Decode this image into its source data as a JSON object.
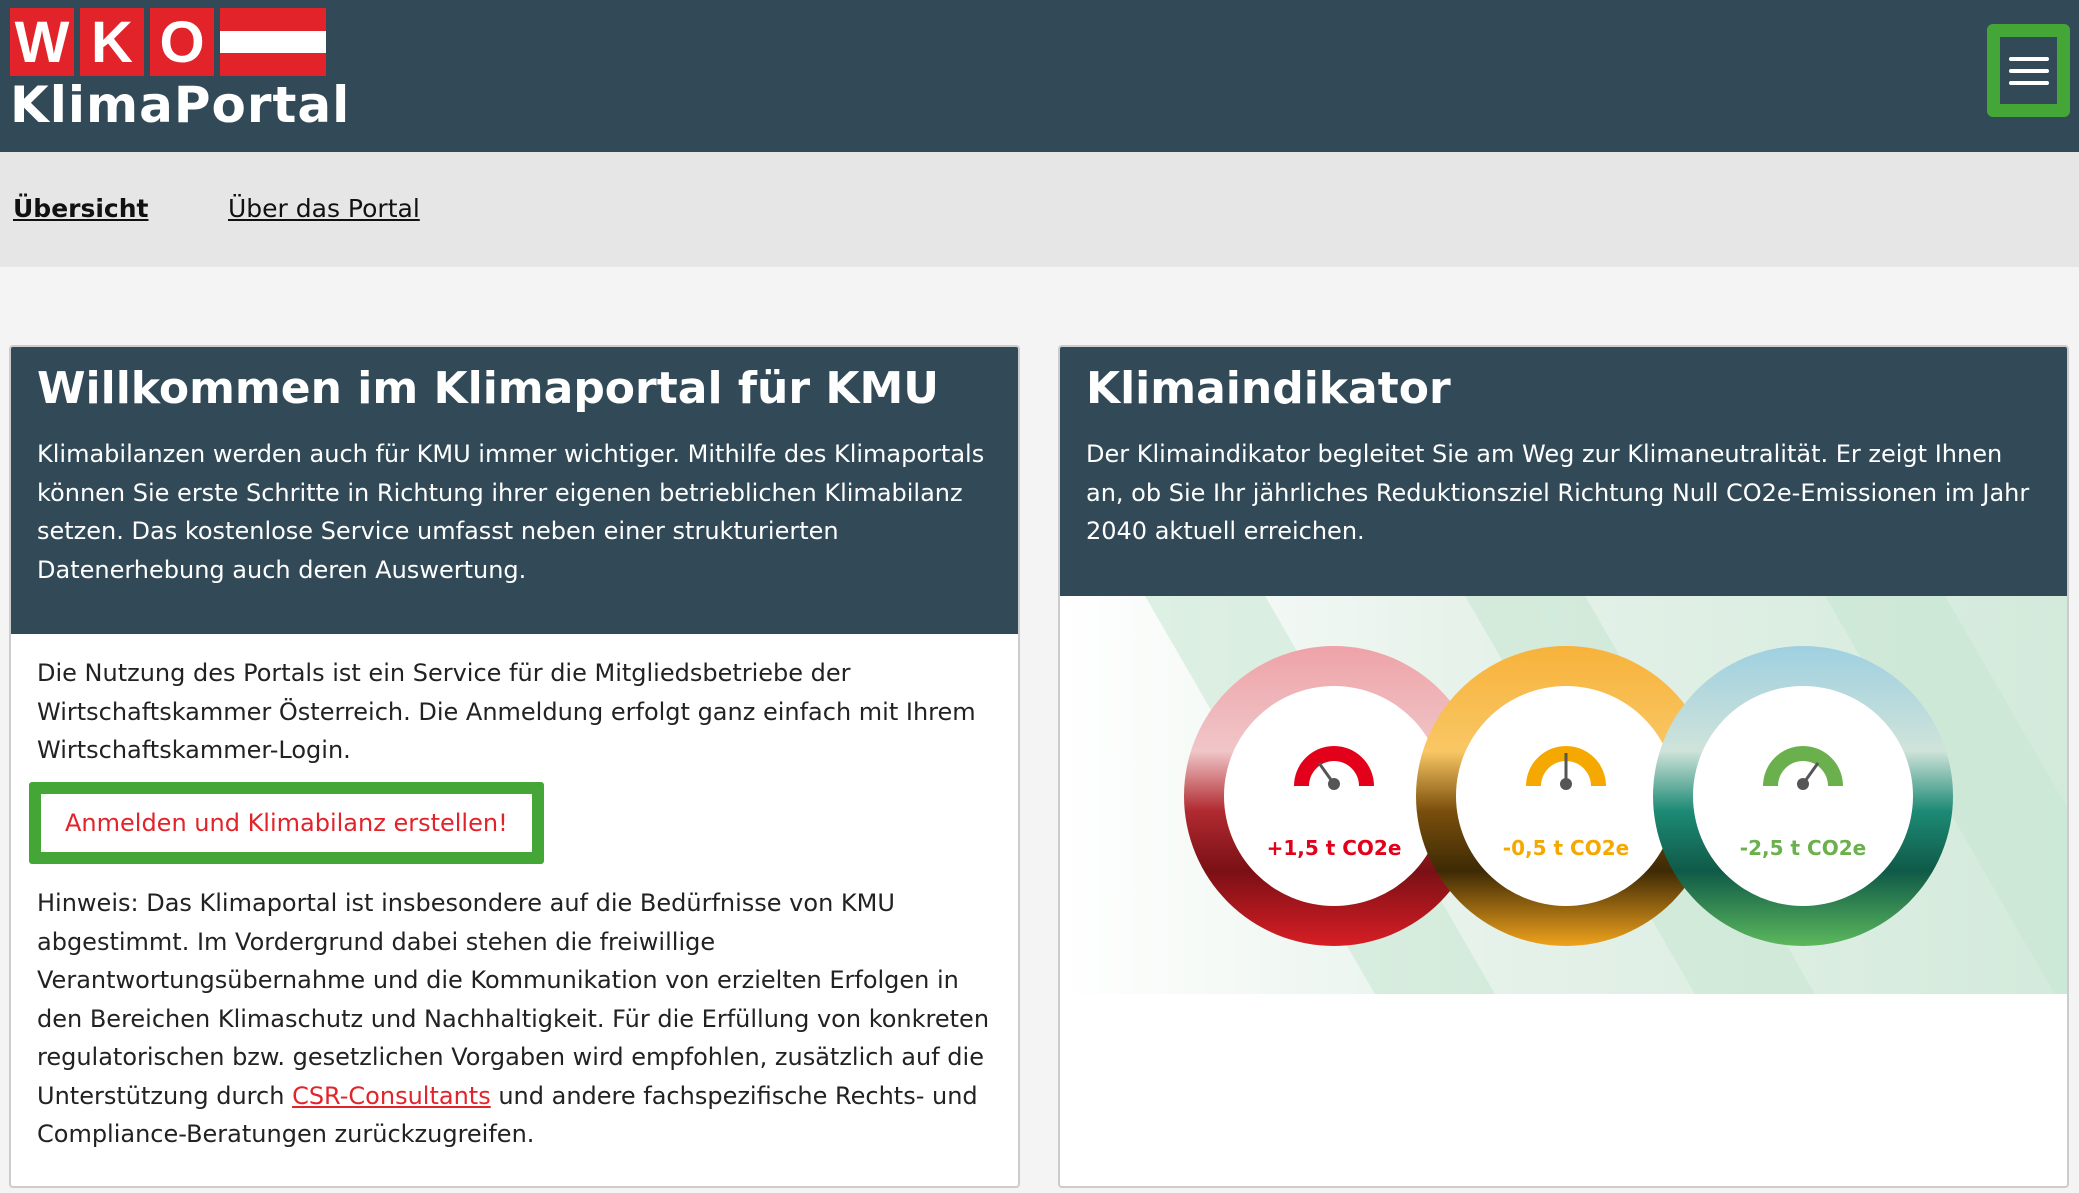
{
  "header": {
    "logo_letters": [
      "W",
      "K",
      "O"
    ],
    "logo_text": "KlimaPortal",
    "menu_icon": "hamburger-icon"
  },
  "nav": {
    "items": [
      {
        "label": "Übersicht",
        "active": true
      },
      {
        "label": "Über das Portal",
        "active": false
      }
    ]
  },
  "welcome": {
    "title": "Willkommen im Klimaportal für KMU",
    "intro": "Klimabilanzen werden auch für KMU immer wichtiger. Mithilfe des Klimaportals können Sie erste Schritte in Richtung ihrer eigenen betrieblichen Klimabilanz setzen. Das kostenlose Service umfasst neben einer strukturierten Datenerhebung auch deren Auswertung.",
    "usage": "Die Nutzung des Portals ist ein Service für die Mitgliedsbetriebe der Wirtschaftskammer Österreich. Die Anmeldung erfolgt ganz einfach mit Ihrem Wirtschaftskammer-Login.",
    "login_button": "Anmelden und Klimabilanz erstellen!",
    "hint_before": "Hinweis: Das Klimaportal ist insbesondere auf die Bedürfnisse von KMU abgestimmt. Im Vordergrund dabei stehen die freiwillige Verantwortungsübernahme und die Kommunikation von erzielten Erfolgen in den Bereichen Klimaschutz und Nachhaltigkeit. Für die Erfüllung von konkreten regulatorischen bzw. gesetzlichen Vorgaben wird empfohlen, zusätzlich auf die Unterstützung durch ",
    "hint_link": "CSR-Consultants",
    "hint_after": " und andere fachspezifische Rechts- und Compliance-Beratungen zurückzugreifen."
  },
  "indicator": {
    "title": "Klimaindikator",
    "intro": "Der Klimaindikator begleitet Sie am Weg zur Klimaneutralität. Er zeigt Ihnen an, ob Sie Ihr jährliches Reduktionsziel Richtung Null CO2e-Emissionen im Jahr 2040 aktuell erreichen.",
    "gauges": [
      {
        "label": "+1,5 t CO2e",
        "color": "#e2001a"
      },
      {
        "label": "-0,5 t CO2e",
        "color": "#f5a800"
      },
      {
        "label": "-2,5 t CO2e",
        "color": "#6ab04c"
      }
    ]
  }
}
